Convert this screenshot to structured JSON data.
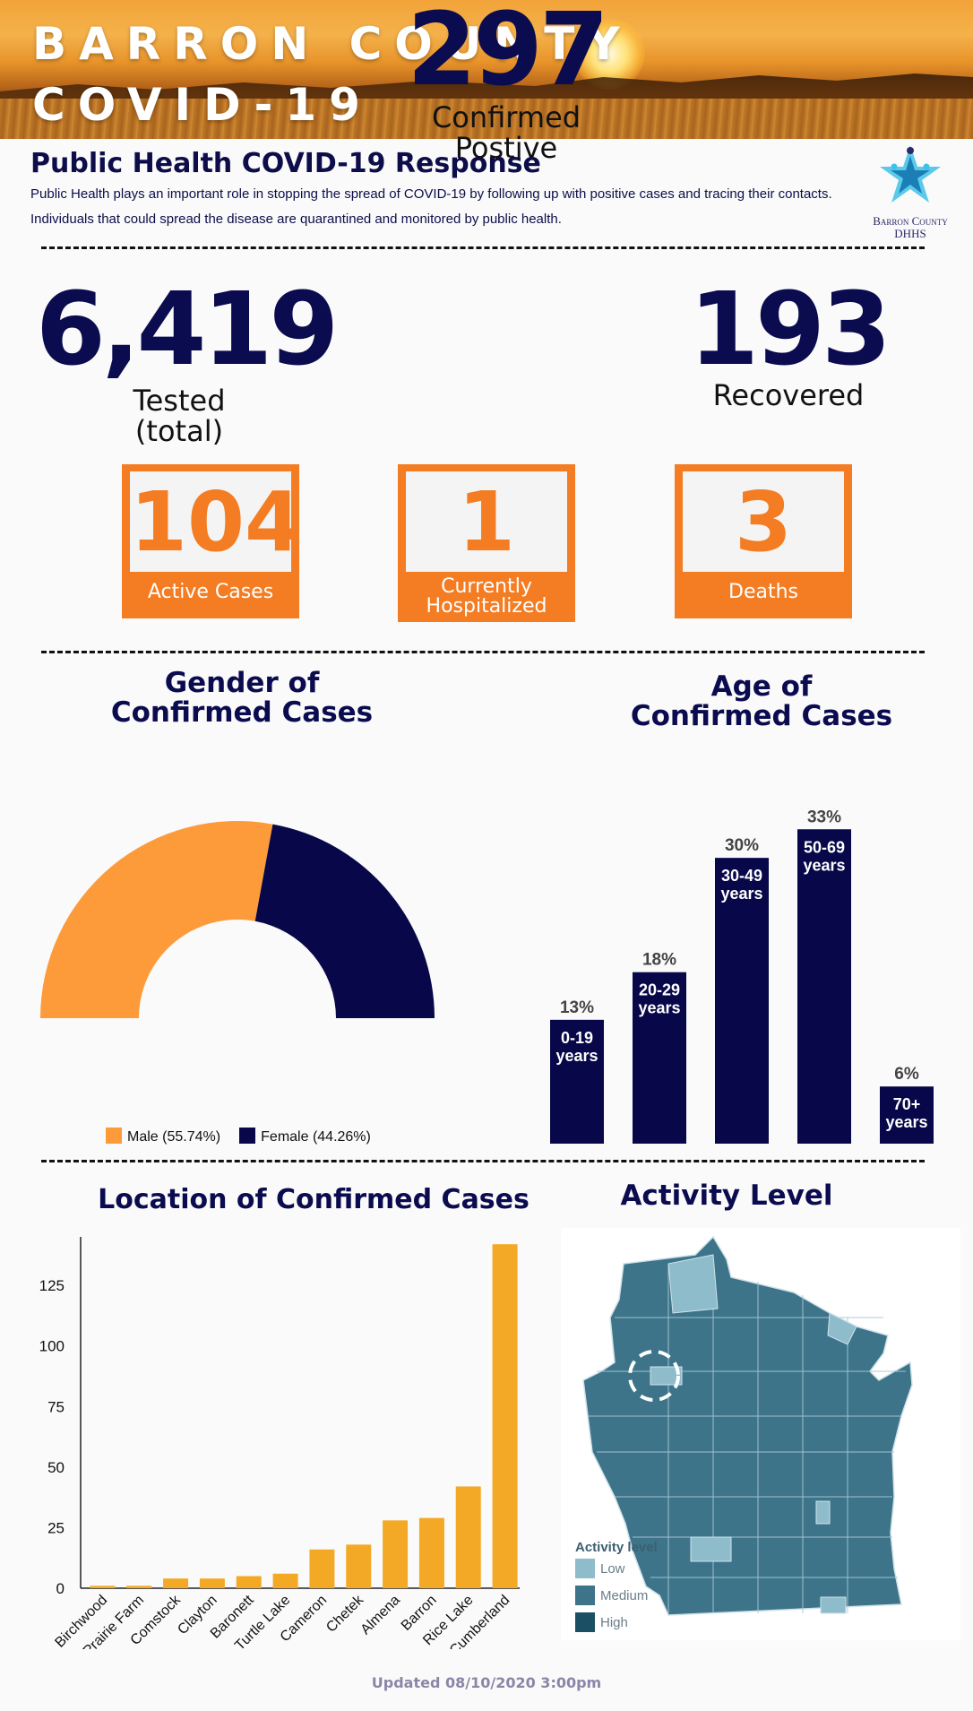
{
  "banner": {
    "line1": "BARRON COUNTY",
    "line2": "COVID-19"
  },
  "header": {
    "title": "Public Health COVID-19 Response",
    "intro": "Public Health plays an important role in stopping the spread of COVID-19 by following up with positive cases and tracing their contacts. Individuals that could spread the disease are quarantined and monitored by public health.",
    "logo_line1": "Barron County",
    "logo_line2": "DHHS"
  },
  "stats": {
    "tested": {
      "value": "6,419",
      "label1": "Tested",
      "label2": "(total)"
    },
    "confirmed": {
      "value": "297",
      "label1": "Confirmed",
      "label2": "Postive"
    },
    "recovered": {
      "value": "193",
      "label1": "Recovered"
    },
    "active": {
      "value": "104",
      "label": "Active Cases"
    },
    "hospitalized": {
      "value": "1",
      "label1": "Currently",
      "label2": "Hospitalized"
    },
    "deaths": {
      "value": "3",
      "label": "Deaths"
    }
  },
  "colors": {
    "navy": "#07074a",
    "orange": "#f47c22",
    "male": "#fd9b3a",
    "female": "#07074a",
    "bar_gold": "#f4a926"
  },
  "chart_data": [
    {
      "type": "pie",
      "variant": "half-donut",
      "title": "Gender of Confirmed Cases",
      "title_line1": "Gender of",
      "title_line2": "Confirmed Cases",
      "slices": [
        {
          "name": "Male",
          "value": 55.74,
          "legend": "Male (55.74%)",
          "color": "#fd9b3a"
        },
        {
          "name": "Female",
          "value": 44.26,
          "legend": "Female (44.26%)",
          "color": "#07074a"
        }
      ]
    },
    {
      "type": "bar",
      "title": "Age of Confirmed Cases",
      "title_line1": "Age",
      "title_line2": "Confirmed Cases",
      "title_of": "of",
      "categories": [
        "0-19 years",
        "20-29 years",
        "30-49 years",
        "50-69 years",
        "70+ years"
      ],
      "category_lines": [
        [
          "0-19",
          "years"
        ],
        [
          "20-29",
          "years"
        ],
        [
          "30-49",
          "years"
        ],
        [
          "50-69",
          "years"
        ],
        [
          "70+",
          "years"
        ]
      ],
      "values": [
        13,
        18,
        30,
        33,
        6
      ],
      "labels": [
        "13%",
        "18%",
        "30%",
        "33%",
        "6%"
      ],
      "ylim": [
        0,
        35
      ]
    },
    {
      "type": "bar",
      "title": "Location of Confirmed Cases",
      "categories": [
        "Birchwood",
        "Prairie Farm",
        "Comstock",
        "Clayton",
        "Baronett",
        "Turtle Lake",
        "Cameron",
        "Chetek",
        "Almena",
        "Barron",
        "Rice Lake",
        "Cumberland"
      ],
      "values": [
        1,
        1,
        4,
        4,
        5,
        6,
        16,
        18,
        28,
        29,
        42,
        142
      ],
      "yticks": [
        0,
        25,
        50,
        75,
        100,
        125
      ],
      "ylim": [
        0,
        148
      ]
    }
  ],
  "activity": {
    "title": "Activity Level",
    "legend_title": "Activity level",
    "levels": [
      {
        "label": "Low",
        "color": "#8fbccb"
      },
      {
        "label": "Medium",
        "color": "#3d7489"
      },
      {
        "label": "High",
        "color": "#1b4f63"
      }
    ]
  },
  "footer": {
    "updated": "Updated 08/10/2020 3:00pm"
  }
}
